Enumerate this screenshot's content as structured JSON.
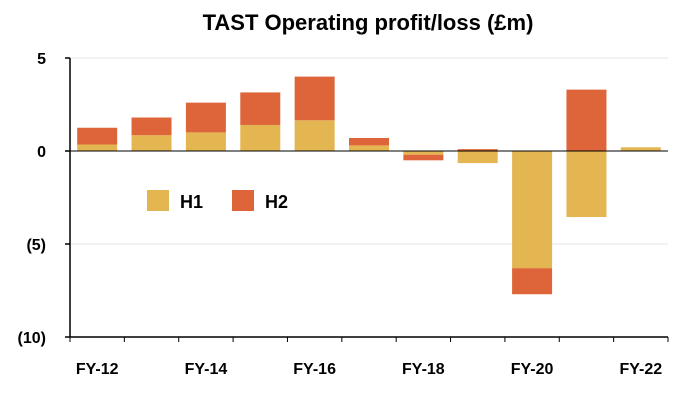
{
  "chart_data": {
    "type": "bar",
    "stacked": true,
    "title": "TAST Operating profit/loss (£m)",
    "xlabel": "",
    "ylabel": "",
    "categories": [
      "FY-12",
      "FY-13",
      "FY-14",
      "FY-15",
      "FY-16",
      "FY-17",
      "FY-18",
      "FY-19",
      "FY-20",
      "FY-21",
      "FY-22"
    ],
    "x_tick_labels": [
      "FY-12",
      "FY-14",
      "FY-16",
      "FY-18",
      "FY-20",
      "FY-22"
    ],
    "y_ticks": [
      5,
      0,
      -5,
      -10
    ],
    "y_tick_labels": [
      "5",
      "0",
      "(5)",
      "(10)"
    ],
    "ylim": [
      -10,
      5
    ],
    "grid": true,
    "legend_position": "left-middle",
    "series": [
      {
        "name": "H1",
        "color": "#E4B651",
        "values": [
          0.35,
          0.85,
          1.0,
          1.4,
          1.65,
          0.3,
          -0.2,
          -0.65,
          -6.3,
          -3.55,
          0.2
        ]
      },
      {
        "name": "H2",
        "color": "#DE6539",
        "values": [
          0.9,
          0.95,
          1.6,
          1.75,
          2.35,
          0.4,
          -0.3,
          0.1,
          -1.4,
          3.3,
          0.0
        ]
      }
    ]
  }
}
